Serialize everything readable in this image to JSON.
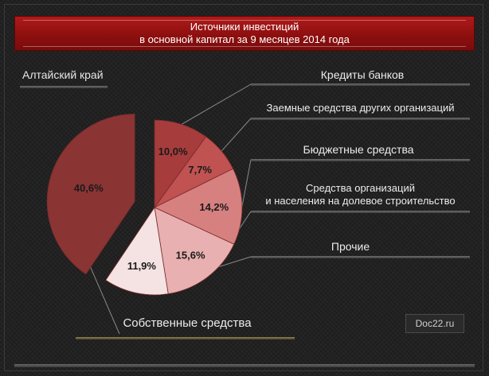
{
  "chart_data": {
    "type": "pie",
    "title": "Источники инвестиций\nв основной капитал за 9 месяцев 2014 года",
    "title_line1": "Источники инвестиций",
    "title_line2": "в основной капитал за 9 месяцев 2014 года",
    "region": "Алтайский край",
    "slices": [
      {
        "category": "Кредиты банков",
        "value": 10.0,
        "label": "10,0%",
        "color": "#a63c3c"
      },
      {
        "category": "Заемные средства других организаций",
        "value": 7.7,
        "label": "7,7%",
        "color": "#c05252"
      },
      {
        "category": "Бюджетные средства",
        "value": 14.2,
        "label": "14,2%",
        "color": "#d78080"
      },
      {
        "category": "Средства организаций и населения на долевое строительство",
        "value": 15.6,
        "label": "15,6%",
        "color": "#e8b0b0"
      },
      {
        "category": "Прочие",
        "value": 11.9,
        "label": "11,9%",
        "color": "#f5e2e2"
      },
      {
        "category": "Собственные средства",
        "value": 40.6,
        "label": "40,6%",
        "color": "#8a3434",
        "exploded": true
      }
    ],
    "legend_labels": {
      "credits": "Кредиты банков",
      "loans": "Заемные средства других организаций",
      "budget": "Бюджетные средства",
      "equity_line1": "Средства организаций",
      "equity_line2": "и населения на долевое строительство",
      "other": "Прочие",
      "own": "Собственные средства"
    }
  },
  "watermark": "Doc22.ru"
}
